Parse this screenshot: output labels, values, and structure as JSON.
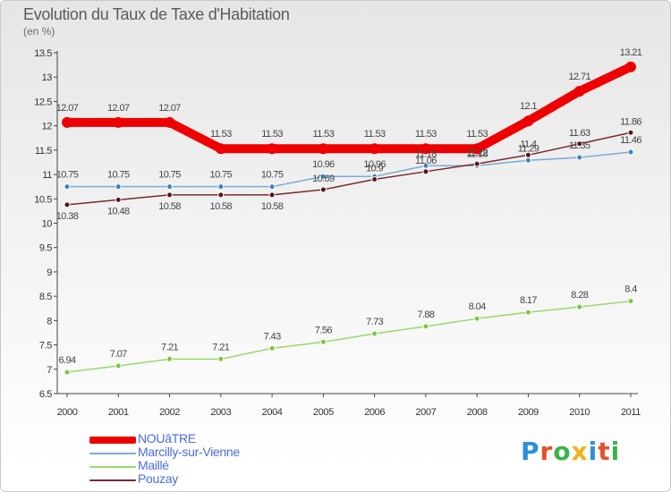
{
  "chart_data": {
    "type": "line",
    "title": "Evolution du Taux de Taxe d'Habitation",
    "subtitle": "(en %)",
    "xlabel": "",
    "ylabel": "",
    "x": [
      "2000",
      "2001",
      "2002",
      "2003",
      "2004",
      "2005",
      "2006",
      "2007",
      "2008",
      "2009",
      "2010",
      "2011"
    ],
    "ylim": [
      6.5,
      13.5
    ],
    "yticks": [
      "6.5",
      "7",
      "7.5",
      "8",
      "8.5",
      "9",
      "9.5",
      "10",
      "10.5",
      "11",
      "11.5",
      "12",
      "12.5",
      "13",
      "13.5"
    ],
    "grid": false,
    "legend_position": "bottom-left",
    "series": [
      {
        "name": "NOUâTRE",
        "color": "#ee0000",
        "values": [
          12.07,
          12.07,
          12.07,
          11.53,
          11.53,
          11.53,
          11.53,
          11.53,
          11.53,
          12.1,
          12.71,
          13.21
        ],
        "labels": [
          "12.07",
          "12.07",
          "12.07",
          "11.53",
          "11.53",
          "11.53",
          "11.53",
          "11.53",
          "11.53",
          "12.1",
          "12.71",
          "13.21"
        ]
      },
      {
        "name": "Marcilly-sur-Vienne",
        "color": "#7aaad8",
        "values": [
          10.75,
          10.75,
          10.75,
          10.75,
          10.75,
          10.96,
          10.96,
          11.18,
          11.18,
          11.29,
          11.35,
          11.46
        ],
        "labels": [
          "10.75",
          "10.75",
          "10.75",
          "10.75",
          "10.75",
          "10.96",
          "10.96",
          "11.18",
          "11.18",
          "11.29",
          "11.35",
          "11.46"
        ]
      },
      {
        "name": "Maillé",
        "color": "#99d86a",
        "values": [
          6.94,
          7.07,
          7.21,
          7.21,
          7.43,
          7.56,
          7.73,
          7.88,
          8.04,
          8.17,
          8.28,
          8.4
        ],
        "labels": [
          "6.94",
          "7.07",
          "7.21",
          "7.21",
          "7.43",
          "7.56",
          "7.73",
          "7.88",
          "8.04",
          "8.17",
          "8.28",
          "8.4"
        ]
      },
      {
        "name": "Pouzay",
        "color": "#7a2a2a",
        "values": [
          10.38,
          10.48,
          10.58,
          10.58,
          10.58,
          10.69,
          10.9,
          11.06,
          11.22,
          11.4,
          11.63,
          11.86
        ],
        "labels": [
          "10.38",
          "10.48",
          "10.58",
          "10.58",
          "10.58",
          "10.69",
          "10.9",
          "11.06",
          "11.22",
          "11.4",
          "11.63",
          "11.86"
        ]
      }
    ]
  },
  "branding": {
    "letters": [
      "P",
      "r",
      "o",
      "x",
      "i",
      "t",
      "i"
    ]
  }
}
